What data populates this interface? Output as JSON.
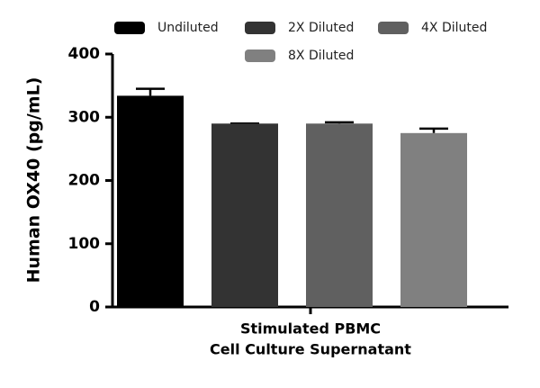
{
  "chart_data": {
    "type": "bar",
    "ylabel": "Human OX40 (pg/mL)",
    "categories": [
      [
        "Stimulated PBMC",
        "Cell Culture Supernatant"
      ]
    ],
    "series": [
      {
        "name": "Undiluted",
        "color": "#000000",
        "values": [
          334
        ],
        "errors": [
          11
        ]
      },
      {
        "name": "2X Diluted",
        "color": "#333333",
        "values": [
          290
        ],
        "errors": [
          0
        ]
      },
      {
        "name": "4X Diluted",
        "color": "#606060",
        "values": [
          290
        ],
        "errors": [
          2
        ]
      },
      {
        "name": "8X Diluted",
        "color": "#808080",
        "values": [
          275
        ],
        "errors": [
          7
        ]
      }
    ],
    "ylim": [
      0,
      400
    ],
    "yticks": [
      0,
      100,
      200,
      300,
      400
    ],
    "grid": false
  }
}
